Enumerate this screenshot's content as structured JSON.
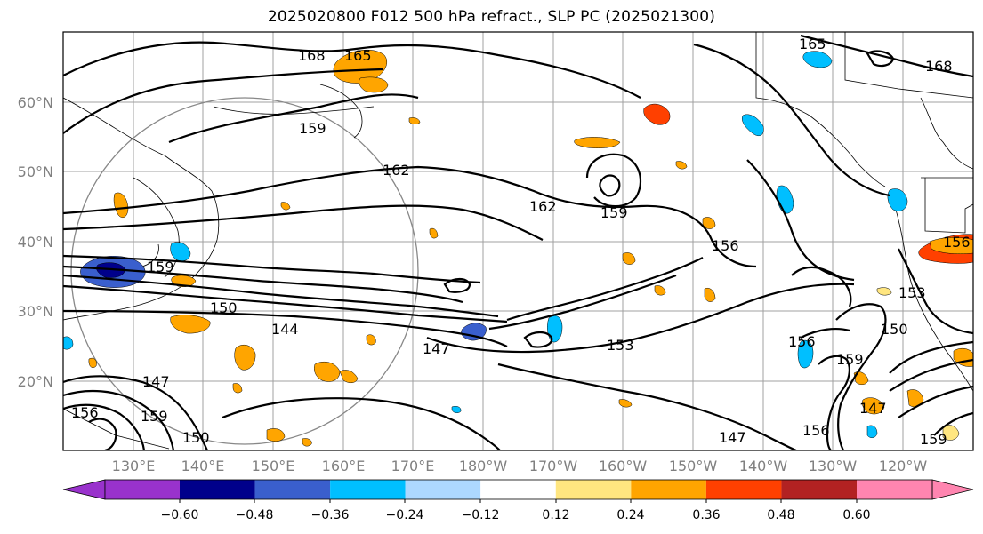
{
  "title": "2025020800 F012 500 hPa refract., SLP PC (2025021300)",
  "lat_labels": [
    "60°N",
    "50°N",
    "40°N",
    "30°N",
    "20°N"
  ],
  "lon_labels": [
    "130°E",
    "140°E",
    "150°E",
    "160°E",
    "170°E",
    "180°W",
    "170°W",
    "160°W",
    "150°W",
    "140°W",
    "130°W",
    "120°W"
  ],
  "contour_labels": [
    "168",
    "165",
    "159",
    "162",
    "162",
    "159",
    "159",
    "156",
    "156",
    "150",
    "144",
    "147",
    "153",
    "156",
    "159",
    "150",
    "153",
    "147",
    "147",
    "159",
    "156",
    "147",
    "150",
    "159",
    "165",
    "168",
    "156"
  ],
  "colorbar": {
    "ticks": [
      "−0.60",
      "−0.48",
      "−0.36",
      "−0.24",
      "−0.12",
      "0.12",
      "0.24",
      "0.36",
      "0.48",
      "0.60"
    ],
    "colors": [
      "#9932cc",
      "#00008b",
      "#3a5fcd",
      "#00bfff",
      "#add8ff",
      "#ffffff",
      "#ffe680",
      "#ffa500",
      "#ff4000",
      "#b22222",
      "#ff85b0"
    ]
  }
}
